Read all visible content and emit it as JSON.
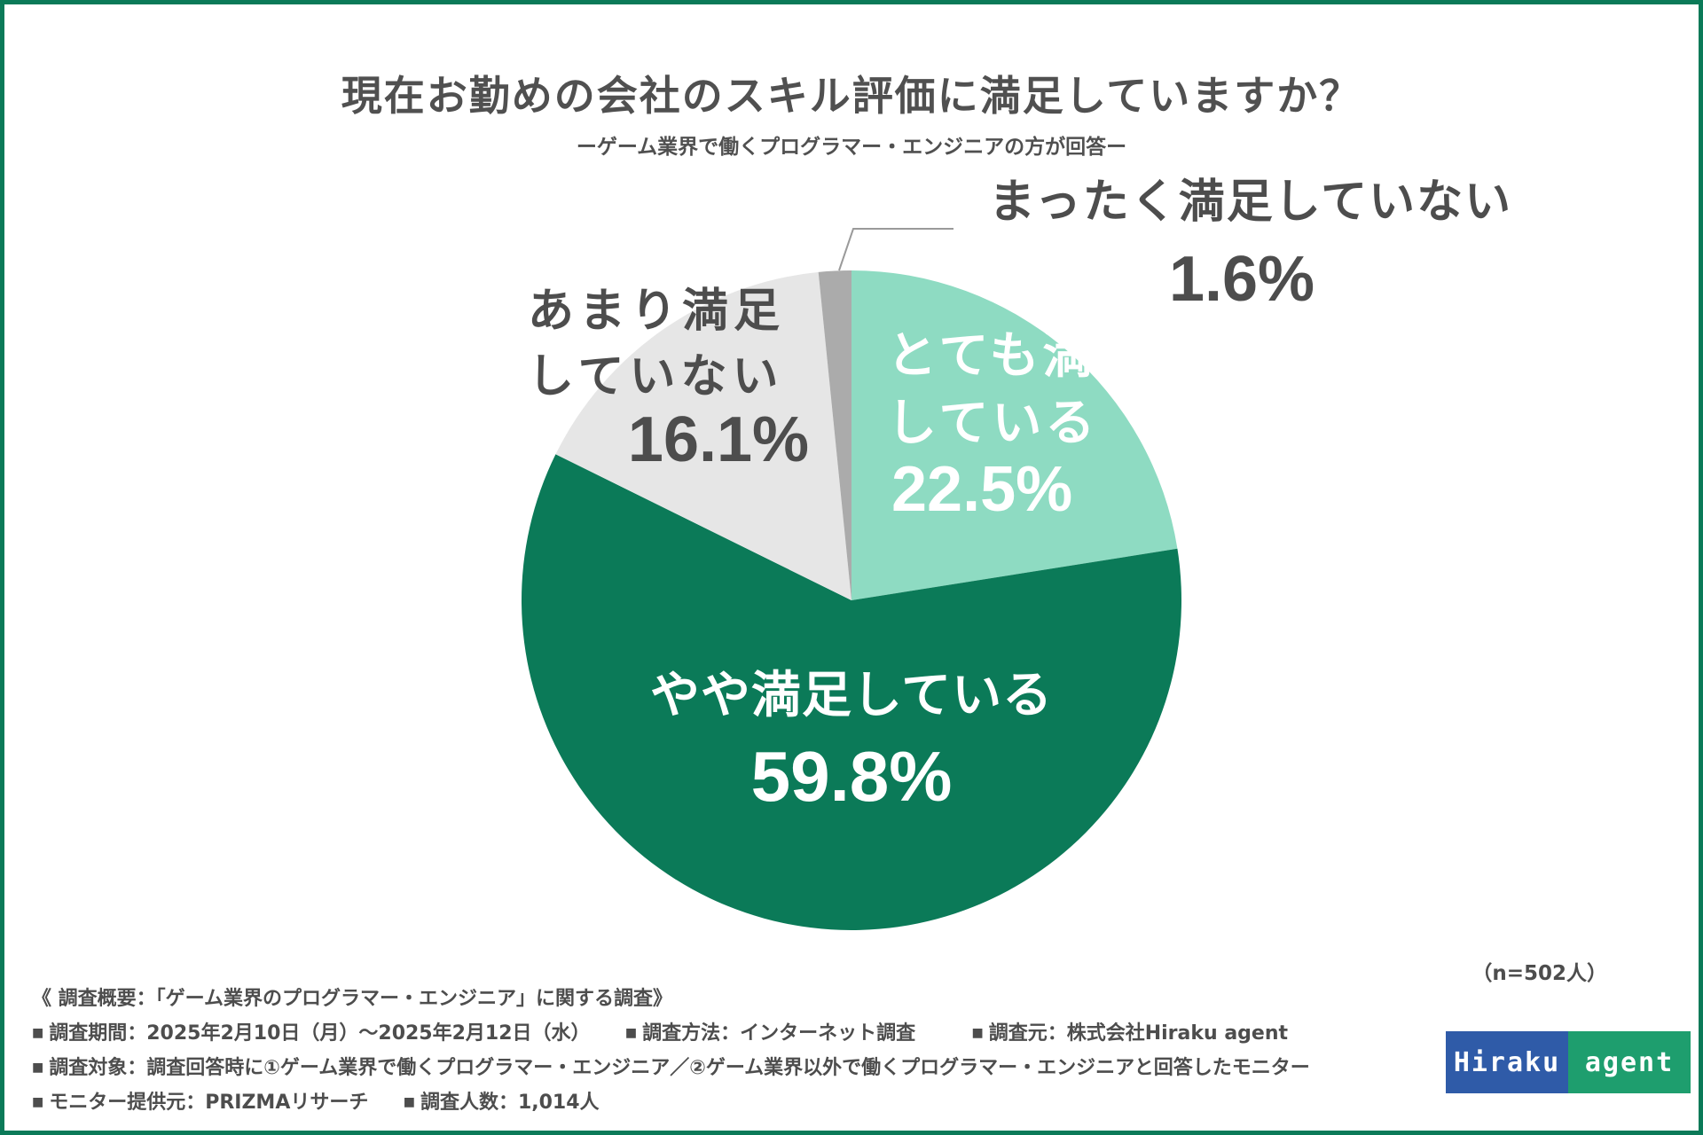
{
  "title": "現在お勤めの会社のスキル評価に満足していますか？",
  "subtitle": "ーゲーム業界で働くプログラマー・エンジニアの方が回答ー",
  "sample_size": "（n=502人）",
  "chart_data": {
    "type": "pie",
    "start": "12 o'clock, clockwise",
    "slices": [
      {
        "label_lines": [
          "とても満足",
          "している"
        ],
        "value": 22.5,
        "value_text": "22.5%",
        "color": "#8edbc2",
        "label_color": "#ffffff"
      },
      {
        "label_lines": [
          "やや満足している"
        ],
        "value": 59.8,
        "value_text": "59.8%",
        "color": "#0b7a58",
        "label_color": "#ffffff"
      },
      {
        "label_lines": [
          "あまり満足",
          "していない"
        ],
        "value": 16.1,
        "value_text": "16.1%",
        "color": "#e6e6e6",
        "label_color": "#4d4d4d"
      },
      {
        "label_lines": [
          "まったく満足していない"
        ],
        "value": 1.6,
        "value_text": "1.6%",
        "color": "#ababab",
        "label_color": "#4d4d4d"
      }
    ]
  },
  "footer": {
    "heading": "《 調査概要：「ゲーム業界のプログラマー・エンジニア」に関する調査》",
    "period": "調査期間：2025年2月10日（月）〜2025年2月12日（水）",
    "method": "調査方法：インターネット調査",
    "organizer": "調査元：株式会社Hiraku agent",
    "target": "調査対象：調査回答時に①ゲーム業界で働くプログラマー・エンジニア／②ゲーム業界以外で働くプログラマー・エンジニアと回答したモニター",
    "provider": "モニター提供元：PRIZMAリサーチ",
    "count": "調査人数：1,014人",
    "bullet": "■"
  },
  "logo": {
    "left": "Hiraku",
    "right": "agent",
    "left_color": "#2f5ba8",
    "right_color": "#1e9e6e"
  }
}
